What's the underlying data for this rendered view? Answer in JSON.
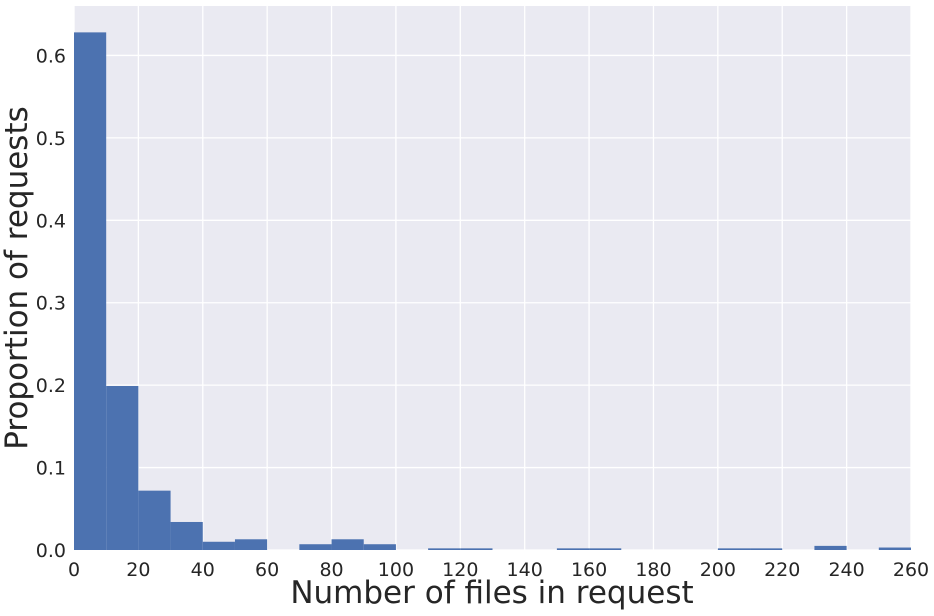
{
  "chart_data": {
    "type": "bar",
    "title": "",
    "xlabel": "Number of files in request",
    "ylabel": "Proportion of requests",
    "xlim": [
      0,
      260
    ],
    "ylim": [
      0,
      0.66
    ],
    "grid": true,
    "bin_width": 10,
    "bins": [
      {
        "x0": 0,
        "x1": 10,
        "value": 0.628
      },
      {
        "x0": 10,
        "x1": 20,
        "value": 0.199
      },
      {
        "x0": 20,
        "x1": 30,
        "value": 0.072
      },
      {
        "x0": 30,
        "x1": 40,
        "value": 0.034
      },
      {
        "x0": 40,
        "x1": 50,
        "value": 0.01
      },
      {
        "x0": 50,
        "x1": 60,
        "value": 0.013
      },
      {
        "x0": 60,
        "x1": 70,
        "value": 0.0
      },
      {
        "x0": 70,
        "x1": 80,
        "value": 0.007
      },
      {
        "x0": 80,
        "x1": 90,
        "value": 0.013
      },
      {
        "x0": 90,
        "x1": 100,
        "value": 0.007
      },
      {
        "x0": 100,
        "x1": 110,
        "value": 0.0
      },
      {
        "x0": 110,
        "x1": 120,
        "value": 0.002
      },
      {
        "x0": 120,
        "x1": 130,
        "value": 0.002
      },
      {
        "x0": 130,
        "x1": 140,
        "value": 0.0
      },
      {
        "x0": 140,
        "x1": 150,
        "value": 0.0
      },
      {
        "x0": 150,
        "x1": 160,
        "value": 0.002
      },
      {
        "x0": 160,
        "x1": 170,
        "value": 0.002
      },
      {
        "x0": 170,
        "x1": 180,
        "value": 0.0
      },
      {
        "x0": 180,
        "x1": 190,
        "value": 0.0
      },
      {
        "x0": 190,
        "x1": 200,
        "value": 0.0
      },
      {
        "x0": 200,
        "x1": 210,
        "value": 0.002
      },
      {
        "x0": 210,
        "x1": 220,
        "value": 0.002
      },
      {
        "x0": 220,
        "x1": 230,
        "value": 0.0
      },
      {
        "x0": 230,
        "x1": 240,
        "value": 0.005
      },
      {
        "x0": 240,
        "x1": 250,
        "value": 0.0
      },
      {
        "x0": 250,
        "x1": 260,
        "value": 0.003
      }
    ],
    "x_ticks": [
      "0",
      "20",
      "40",
      "60",
      "80",
      "100",
      "120",
      "140",
      "160",
      "180",
      "200",
      "220",
      "240",
      "260"
    ],
    "y_ticks": [
      "0.0",
      "0.1",
      "0.2",
      "0.3",
      "0.4",
      "0.5",
      "0.6"
    ],
    "colors": {
      "bar": "#4c72b0",
      "plot_background": "#eaeaf2",
      "grid": "#ffffff",
      "text": "#262626"
    }
  }
}
